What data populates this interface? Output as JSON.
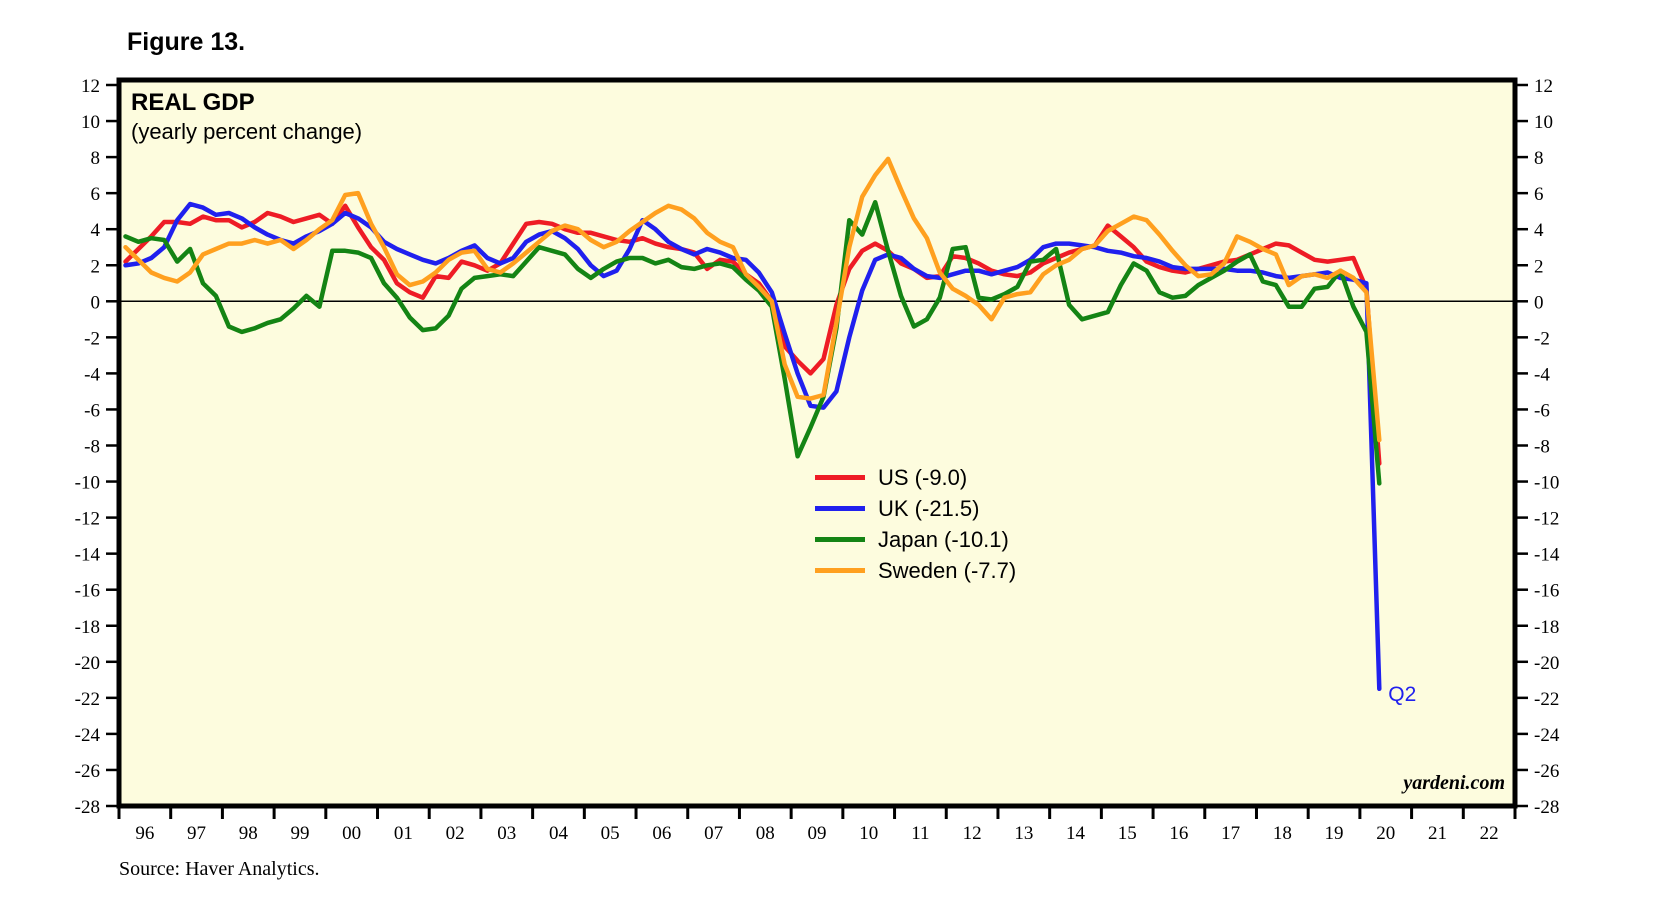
{
  "figure_label": "Figure 13.",
  "source_note": "Source: Haver Analytics.",
  "watermark": "yardeni.com",
  "chart_data": {
    "type": "line",
    "title": "REAL GDP",
    "subtitle": "(yearly percent change)",
    "background": "#FDFCDE",
    "x_start_year": 1996,
    "x_end_year": 2023,
    "frequency": "quarterly",
    "first_point": "1996 Q1",
    "last_point": "2020 Q2",
    "ylim": [
      -28,
      12
    ],
    "y_tick_step": 2,
    "grid": "zero-line-only",
    "legend_position": "inside-center",
    "x_tick_labels": [
      "96",
      "97",
      "98",
      "99",
      "00",
      "01",
      "02",
      "03",
      "04",
      "05",
      "06",
      "07",
      "08",
      "09",
      "10",
      "11",
      "12",
      "13",
      "14",
      "15",
      "16",
      "17",
      "18",
      "19",
      "20",
      "21",
      "22"
    ],
    "annotation": {
      "text": "Q2",
      "attached_to": "UK",
      "value": -21.5
    },
    "series": [
      {
        "name": "US",
        "legend": "US (-9.0)",
        "color": "#EE1C25",
        "last_value": -9.0,
        "values": [
          2.2,
          2.9,
          3.6,
          4.4,
          4.4,
          4.3,
          4.7,
          4.5,
          4.5,
          4.1,
          4.4,
          4.9,
          4.7,
          4.4,
          4.6,
          4.8,
          4.3,
          5.3,
          4.1,
          3.0,
          2.3,
          1.0,
          0.5,
          0.2,
          1.4,
          1.3,
          2.2,
          2.0,
          1.7,
          2.1,
          3.2,
          4.3,
          4.4,
          4.3,
          4.0,
          3.8,
          3.8,
          3.6,
          3.4,
          3.3,
          3.5,
          3.2,
          3.0,
          2.9,
          2.7,
          1.8,
          2.3,
          2.2,
          1.5,
          1.0,
          0.0,
          -2.5,
          -3.3,
          -4.0,
          -3.2,
          -0.2,
          1.8,
          2.8,
          3.2,
          2.8,
          2.1,
          1.8,
          1.3,
          1.4,
          2.5,
          2.4,
          2.1,
          1.7,
          1.5,
          1.4,
          1.6,
          2.1,
          2.4,
          2.7,
          2.9,
          3.1,
          4.2,
          3.6,
          3.0,
          2.2,
          1.9,
          1.7,
          1.6,
          1.8,
          2.0,
          2.2,
          2.3,
          2.6,
          2.9,
          3.2,
          3.1,
          2.7,
          2.3,
          2.2,
          2.3,
          2.4,
          0.7,
          -9.0
        ]
      },
      {
        "name": "UK",
        "legend": "UK (-21.5)",
        "color": "#2020EE",
        "last_value": -21.5,
        "values": [
          2.0,
          2.1,
          2.4,
          3.0,
          4.5,
          5.4,
          5.2,
          4.8,
          4.9,
          4.6,
          4.1,
          3.7,
          3.4,
          3.2,
          3.6,
          3.9,
          4.3,
          4.9,
          4.6,
          4.1,
          3.3,
          2.9,
          2.6,
          2.3,
          2.1,
          2.4,
          2.8,
          3.1,
          2.4,
          2.1,
          2.4,
          3.3,
          3.7,
          3.9,
          3.5,
          2.9,
          2.0,
          1.4,
          1.7,
          2.9,
          4.5,
          4.0,
          3.3,
          2.9,
          2.6,
          2.9,
          2.7,
          2.4,
          2.3,
          1.6,
          0.5,
          -1.8,
          -4.0,
          -5.8,
          -5.9,
          -5.0,
          -2.0,
          0.6,
          2.3,
          2.6,
          2.4,
          1.8,
          1.4,
          1.3,
          1.5,
          1.7,
          1.7,
          1.5,
          1.7,
          1.9,
          2.3,
          3.0,
          3.2,
          3.2,
          3.1,
          3.0,
          2.8,
          2.7,
          2.5,
          2.4,
          2.2,
          1.9,
          1.8,
          1.8,
          1.8,
          1.8,
          1.7,
          1.7,
          1.6,
          1.4,
          1.3,
          1.4,
          1.5,
          1.6,
          1.3,
          1.2,
          1.0,
          -21.5
        ]
      },
      {
        "name": "Japan",
        "legend": "Japan (-10.1)",
        "color": "#148414",
        "last_value": -10.1,
        "values": [
          3.6,
          3.3,
          3.5,
          3.4,
          2.2,
          2.9,
          1.0,
          0.3,
          -1.4,
          -1.7,
          -1.5,
          -1.2,
          -1.0,
          -0.4,
          0.3,
          -0.3,
          2.8,
          2.8,
          2.7,
          2.4,
          1.0,
          0.2,
          -0.9,
          -1.6,
          -1.5,
          -0.8,
          0.7,
          1.3,
          1.4,
          1.5,
          1.4,
          2.2,
          3.0,
          2.8,
          2.6,
          1.8,
          1.3,
          1.8,
          2.2,
          2.4,
          2.4,
          2.1,
          2.3,
          1.9,
          1.8,
          2.0,
          2.1,
          1.9,
          1.2,
          0.6,
          -0.3,
          -4.3,
          -8.6,
          -7.0,
          -5.3,
          -1.5,
          4.5,
          3.7,
          5.5,
          2.8,
          0.3,
          -1.4,
          -1.0,
          0.2,
          2.9,
          3.0,
          0.2,
          0.1,
          0.4,
          0.8,
          2.2,
          2.3,
          2.9,
          -0.2,
          -1.0,
          -0.8,
          -0.6,
          0.9,
          2.1,
          1.7,
          0.5,
          0.2,
          0.3,
          0.9,
          1.3,
          1.7,
          2.2,
          2.6,
          1.1,
          0.9,
          -0.3,
          -0.3,
          0.7,
          0.8,
          1.7,
          -0.3,
          -1.7,
          -10.1
        ]
      },
      {
        "name": "Sweden",
        "legend": "Sweden (-7.7)",
        "color": "#FFA01F",
        "last_value": -7.7,
        "values": [
          3.0,
          2.3,
          1.6,
          1.3,
          1.1,
          1.6,
          2.6,
          2.9,
          3.2,
          3.2,
          3.4,
          3.2,
          3.4,
          2.9,
          3.4,
          4.0,
          4.5,
          5.9,
          6.0,
          4.3,
          3.0,
          1.5,
          0.9,
          1.1,
          1.6,
          2.3,
          2.7,
          2.8,
          1.8,
          1.6,
          2.1,
          2.7,
          3.3,
          3.9,
          4.2,
          4.0,
          3.4,
          3.0,
          3.3,
          3.9,
          4.4,
          4.9,
          5.3,
          5.1,
          4.6,
          3.8,
          3.3,
          3.0,
          1.5,
          0.8,
          0.0,
          -3.5,
          -5.3,
          -5.4,
          -5.2,
          -1.2,
          3.0,
          5.8,
          7.0,
          7.9,
          6.2,
          4.6,
          3.5,
          1.6,
          0.7,
          0.3,
          -0.2,
          -1.0,
          0.2,
          0.4,
          0.5,
          1.5,
          2.0,
          2.3,
          2.9,
          3.1,
          3.9,
          4.3,
          4.7,
          4.5,
          3.7,
          2.8,
          2.0,
          1.4,
          1.5,
          2.1,
          3.6,
          3.3,
          2.9,
          2.6,
          0.9,
          1.4,
          1.5,
          1.3,
          1.7,
          1.3,
          0.5,
          -7.7
        ]
      }
    ]
  }
}
